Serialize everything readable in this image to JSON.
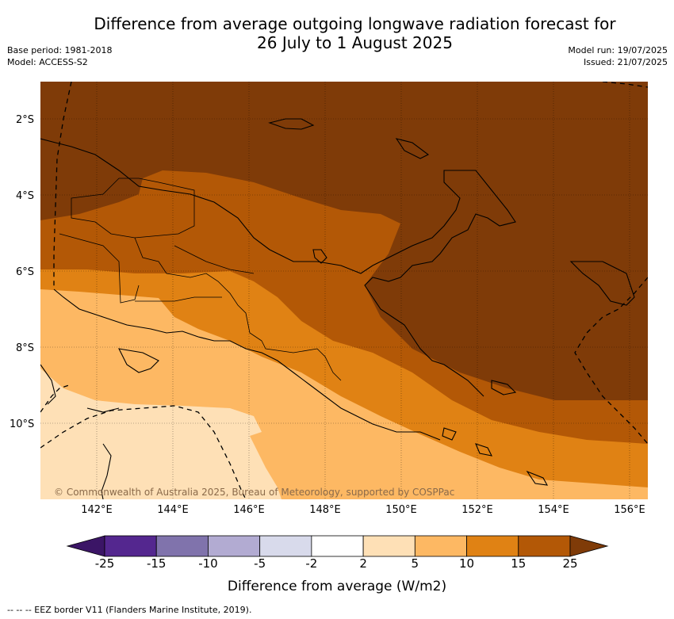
{
  "title_line1": "Difference from average outgoing longwave radiation forecast for",
  "title_line2": "26 July to 1 August 2025",
  "base_period": "Base period: 1981-2018",
  "model": "Model: ACCESS-S2",
  "model_run": "Model run: 19/07/2025",
  "issued": "Issued: 21/07/2025",
  "lat_ticks": [
    "2°S",
    "4°S",
    "6°S",
    "8°S",
    "10°S"
  ],
  "lon_ticks": [
    "142°E",
    "144°E",
    "146°E",
    "148°E",
    "150°E",
    "152°E",
    "154°E",
    "156°E"
  ],
  "copyright": "© Commonwealth of Australia 2025, Bureau of Meteorology, supported by COSPPac",
  "colorbar": {
    "labels": [
      "-25",
      "-15",
      "-10",
      "-5",
      "-2",
      "2",
      "5",
      "10",
      "15",
      "25"
    ],
    "colors": [
      "#3b1566",
      "#54278f",
      "#8073ac",
      "#b2abd2",
      "#d8daeb",
      "#ffffff",
      "#fee0b6",
      "#fdb863",
      "#e08214",
      "#b35806",
      "#7f3b08"
    ],
    "title": "Difference from average (W/m2)"
  },
  "footer": "--  --  -- EEZ border V11 (Flanders Marine Institute, 2019)."
}
